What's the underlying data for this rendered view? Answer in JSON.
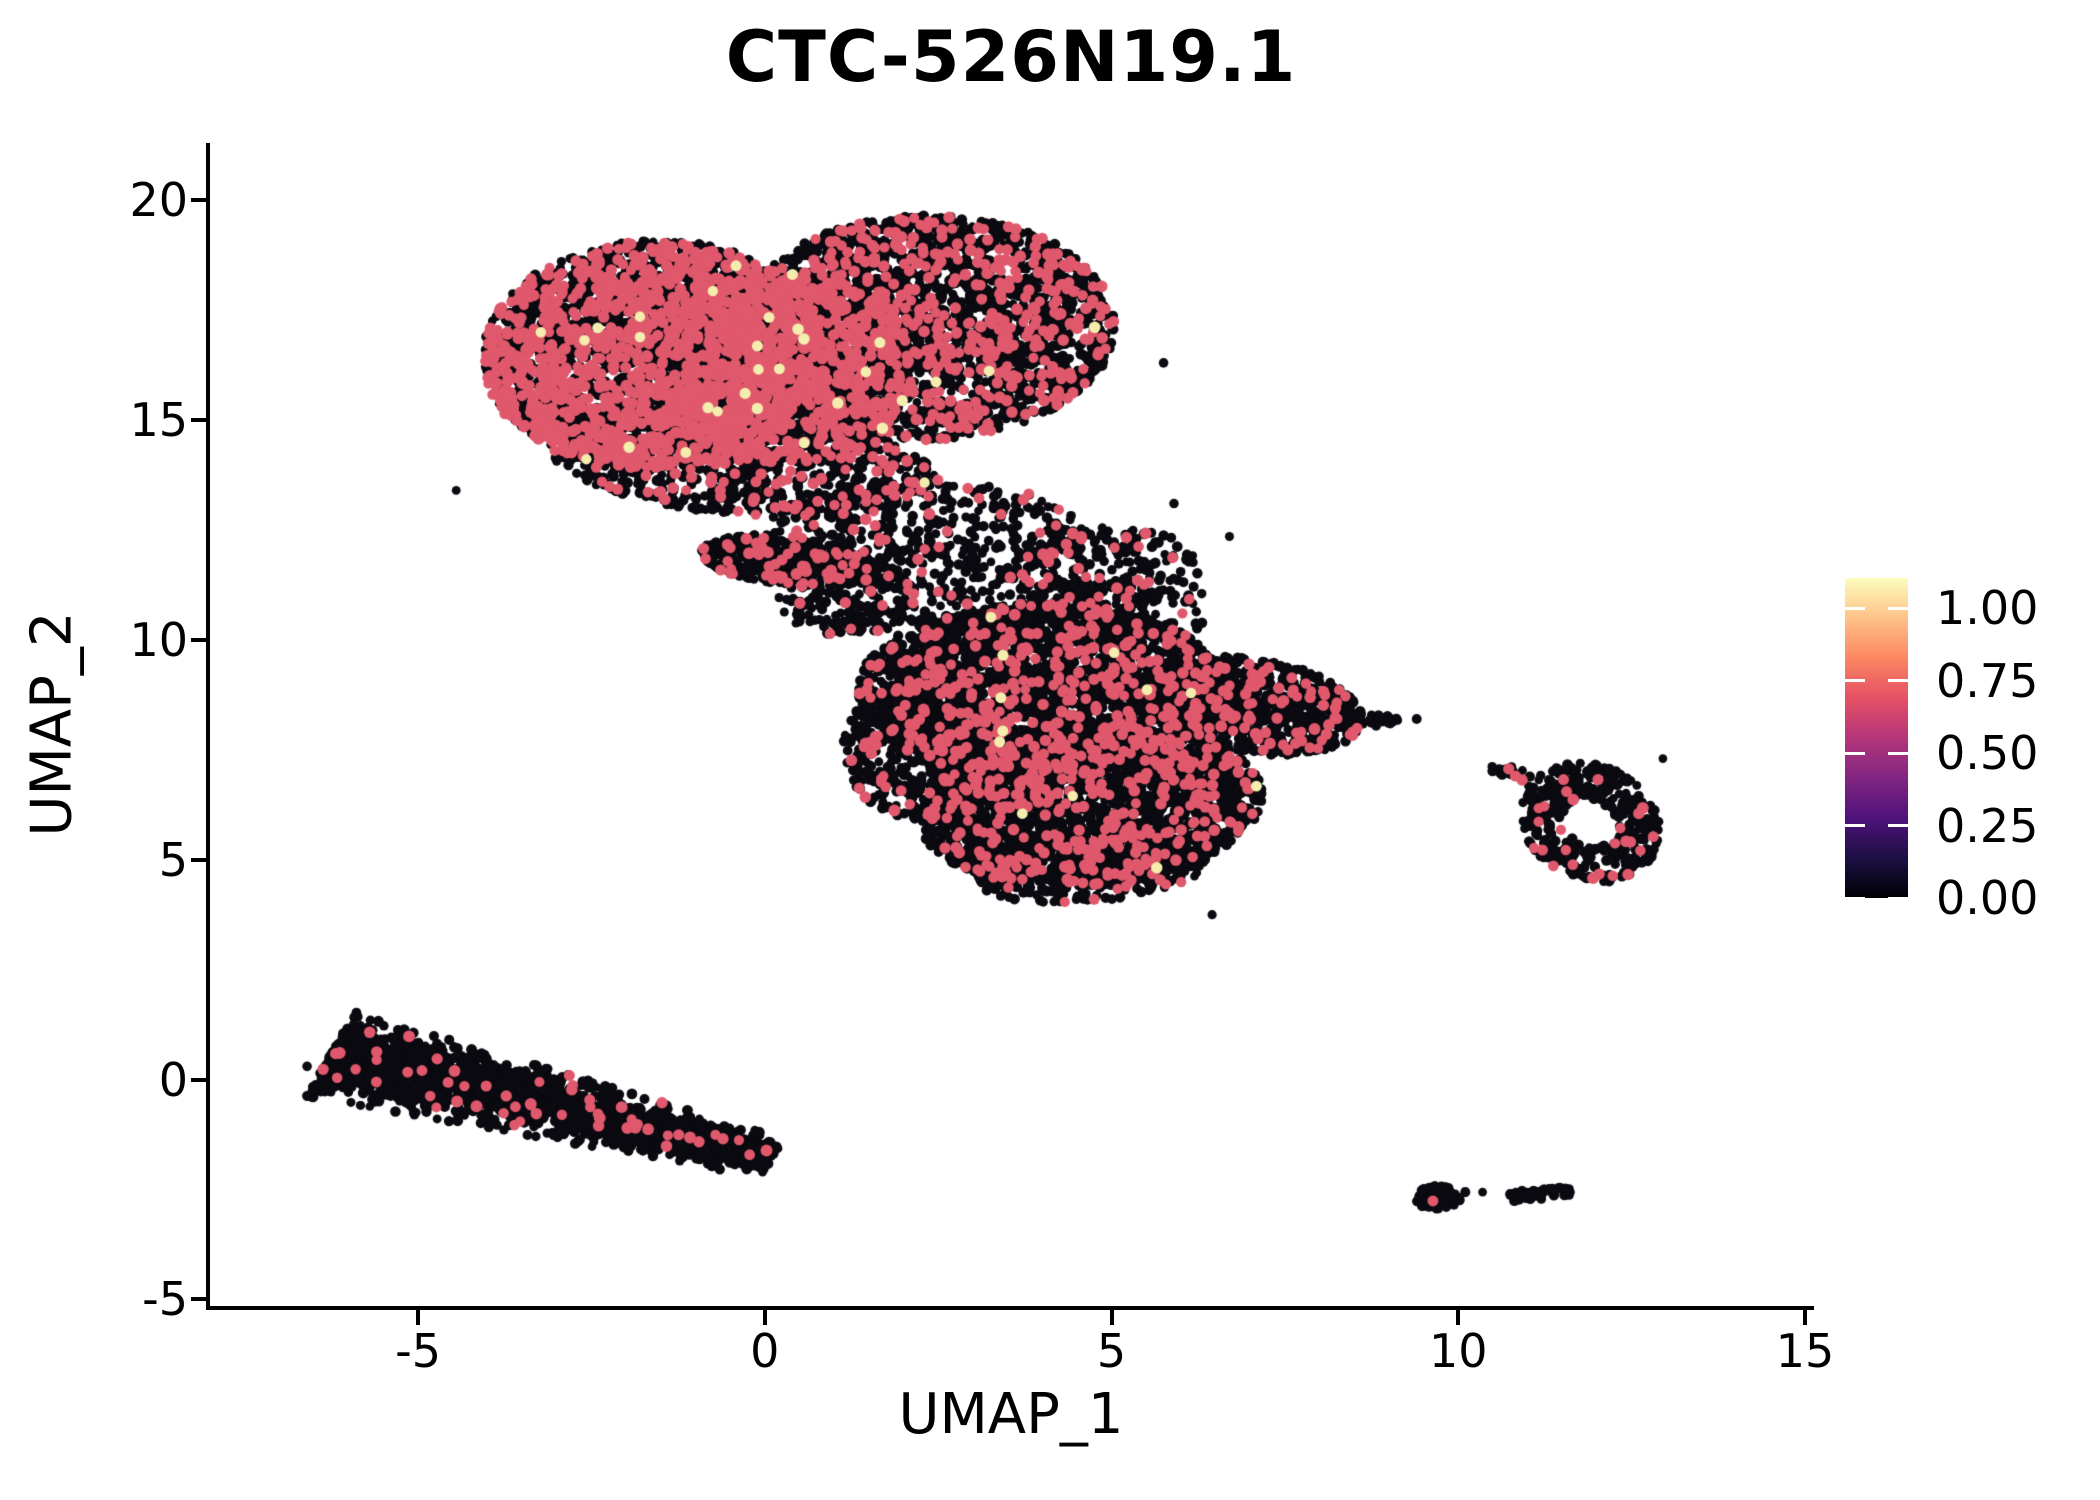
{
  "title": "CTC-526N19.1",
  "colors": {
    "low_black": "#0a0a10",
    "mid_pink": "#e0586c",
    "high_cream": "#f4edae",
    "axis": "#000000"
  },
  "colorbar": {
    "labels": [
      "1.00",
      "0.75",
      "0.50",
      "0.25",
      "0.00"
    ],
    "values": [
      1.0,
      0.75,
      0.5,
      0.25,
      0.0
    ],
    "colormap": "magma",
    "stops": [
      "#000004",
      "#1c1044",
      "#4f127b",
      "#812581",
      "#b5367a",
      "#e55064",
      "#fb8761",
      "#fec287",
      "#fcfdbf"
    ]
  },
  "chart_data": {
    "type": "scatter",
    "title": "CTC-526N19.1",
    "xlabel": "UMAP_1",
    "ylabel": "UMAP_2",
    "x_ticks": [
      -5,
      0,
      5,
      10,
      15
    ],
    "x_tick_labels": [
      "-5",
      "0",
      "5",
      "10",
      "15"
    ],
    "y_ticks": [
      -5,
      0,
      5,
      10,
      15,
      20
    ],
    "y_tick_labels": [
      "-5",
      "0",
      "5",
      "10",
      "15",
      "20"
    ],
    "xlim": [
      -8,
      15.1
    ],
    "ylim": [
      -5.15,
      21.3
    ],
    "legend_range": [
      0,
      1
    ],
    "grid": false,
    "legend_position": "right",
    "clusters": [
      {
        "name": "top-left-lobe",
        "shape": "ellipse",
        "cx": -1.6,
        "cy": 16.5,
        "rx": 2.45,
        "ry": 2.6,
        "rot": -18,
        "n": 3200,
        "pink": 0.36,
        "cream": 0.007
      },
      {
        "name": "top-mid",
        "shape": "ellipse",
        "cx": 0.3,
        "cy": 16.2,
        "rx": 1.8,
        "ry": 2.2,
        "rot": 0,
        "n": 1400,
        "pink": 0.3,
        "cream": 0.004
      },
      {
        "name": "top-right-lobe",
        "shape": "ellipse",
        "cx": 2.3,
        "cy": 17.1,
        "rx": 2.75,
        "ry": 2.55,
        "rot": 8,
        "n": 2600,
        "pink": 0.22,
        "cream": 0.003
      },
      {
        "name": "top-bottom-fringe",
        "shape": "ellipse",
        "cx": -0.3,
        "cy": 14.0,
        "rx": 2.8,
        "ry": 1.15,
        "rot": -8,
        "n": 800,
        "pink": 0.18,
        "cream": 0.002
      },
      {
        "name": "neck-beak",
        "shape": "ellipse",
        "cx": 0.35,
        "cy": 11.8,
        "rx": 1.3,
        "ry": 0.55,
        "rot": -10,
        "n": 420,
        "pink": 0.13,
        "cream": 0
      },
      {
        "name": "neck-scatter",
        "shape": "ellipse",
        "cx": 2.3,
        "cy": 12.4,
        "rx": 2.3,
        "ry": 1.25,
        "rot": 0,
        "n": 420,
        "pink": 0.1,
        "cream": 0
      },
      {
        "name": "neck-right",
        "shape": "ellipse",
        "cx": 4.9,
        "cy": 11.6,
        "rx": 1.4,
        "ry": 1.0,
        "rot": 0,
        "n": 200,
        "pink": 0.08,
        "cream": 0
      },
      {
        "name": "neck-drip",
        "shape": "ellipse",
        "cx": 1.2,
        "cy": 10.9,
        "rx": 1.0,
        "ry": 0.8,
        "rot": 0,
        "n": 160,
        "pink": 0.06,
        "cream": 0
      },
      {
        "name": "mid-upper",
        "shape": "ellipse",
        "cx": 4.0,
        "cy": 8.9,
        "rx": 2.65,
        "ry": 1.95,
        "rot": 0,
        "n": 2600,
        "pink": 0.135,
        "cream": 0.003
      },
      {
        "name": "mid-lower",
        "shape": "ellipse",
        "cx": 4.7,
        "cy": 6.2,
        "rx": 2.5,
        "ry": 1.75,
        "rot": 12,
        "n": 2500,
        "pink": 0.12,
        "cream": 0.003
      },
      {
        "name": "mid-left",
        "shape": "ellipse",
        "cx": 2.3,
        "cy": 7.5,
        "rx": 1.2,
        "ry": 1.6,
        "rot": 0,
        "n": 500,
        "pink": 0.12,
        "cream": 0
      },
      {
        "name": "mid-right-wing",
        "shape": "ellipse",
        "cx": 7.0,
        "cy": 8.5,
        "rx": 1.7,
        "ry": 1.05,
        "rot": -18,
        "n": 800,
        "pink": 0.1,
        "cream": 0
      },
      {
        "name": "mid-right-tip",
        "shape": "band",
        "x1": 7.8,
        "y1": 8.15,
        "x2": 9.15,
        "y2": 8.2,
        "s0": 0.12,
        "s1": 0.05,
        "n": 60,
        "pink": 0.05,
        "cream": 0
      },
      {
        "name": "mid-top-halo",
        "shape": "ellipse",
        "cx": 4.2,
        "cy": 10.6,
        "rx": 2.3,
        "ry": 0.9,
        "rot": 0,
        "n": 260,
        "pink": 0.1,
        "cream": 0
      },
      {
        "name": "mid-bottom-fringe",
        "shape": "ellipse",
        "cx": 4.7,
        "cy": 4.8,
        "rx": 1.7,
        "ry": 0.75,
        "rot": 8,
        "n": 300,
        "pink": 0.1,
        "cream": 0
      },
      {
        "name": "right-ring",
        "shape": "ring",
        "cx": 11.9,
        "cy": 5.85,
        "rx": 0.98,
        "ry": 1.38,
        "rot": 14,
        "hole": 0.4,
        "n": 380,
        "pink": 0.055,
        "cream": 0
      },
      {
        "name": "right-ring-trail",
        "shape": "band",
        "x1": 10.42,
        "y1": 7.15,
        "x2": 11.2,
        "y2": 6.7,
        "s0": 0.08,
        "s1": 0.05,
        "n": 20,
        "pink": 0.08,
        "cream": 0
      },
      {
        "name": "bottom-stripe",
        "shape": "band",
        "x1": -6.25,
        "y1": 0.58,
        "x2": 0.12,
        "y2": -1.78,
        "s0": 0.44,
        "s1": 0.2,
        "tbias": 1.15,
        "n": 2050,
        "pink": 0.03,
        "cream": 0
      },
      {
        "name": "tiny-left",
        "shape": "ellipse",
        "cx": 9.7,
        "cy": -2.68,
        "rx": 0.34,
        "ry": 0.27,
        "rot": 0,
        "n": 85,
        "pink": 0.013,
        "cream": 0
      },
      {
        "name": "tiny-right",
        "shape": "band",
        "x1": 10.72,
        "y1": -2.68,
        "x2": 11.62,
        "y2": -2.5,
        "s0": 0.08,
        "s1": 0.06,
        "n": 55,
        "pink": 0.02,
        "cream": 0
      }
    ],
    "outliers": [
      [
        6.45,
        3.75
      ],
      [
        10.35,
        -2.56
      ],
      [
        5.75,
        16.3
      ],
      [
        5.9,
        13.1
      ],
      [
        6.7,
        12.35
      ],
      [
        -4.45,
        13.4
      ],
      [
        9.4,
        8.2
      ],
      [
        6.3,
        11.05
      ],
      [
        3.3,
        13.0
      ],
      [
        10.1,
        -2.56
      ],
      [
        12.95,
        7.3
      ],
      [
        -6.6,
        0.3
      ]
    ]
  }
}
